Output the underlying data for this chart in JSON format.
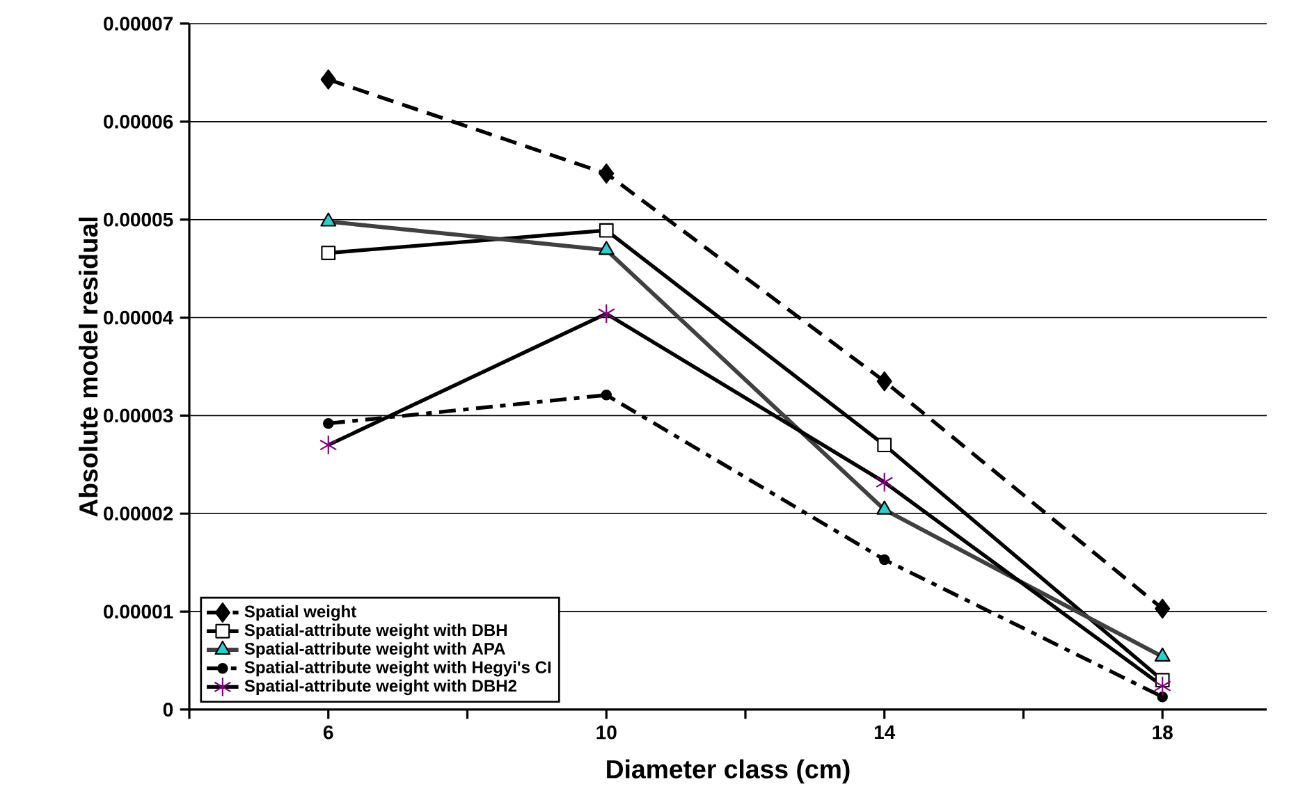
{
  "chart_data": {
    "type": "line",
    "xlabel": "Diameter class (cm)",
    "ylabel": "Absolute model residual",
    "x": [
      6,
      10,
      14,
      18
    ],
    "xlim": [
      4,
      19.5
    ],
    "xticks": [
      {
        "value": 4,
        "label": null
      },
      {
        "value": 6,
        "label": "6"
      },
      {
        "value": 8,
        "label": null
      },
      {
        "value": 10,
        "label": "10"
      },
      {
        "value": 12,
        "label": null
      },
      {
        "value": 14,
        "label": "14"
      },
      {
        "value": 16,
        "label": null
      },
      {
        "value": 18,
        "label": "18"
      }
    ],
    "ylim": [
      0,
      7e-05
    ],
    "yticks": [
      {
        "value": 0,
        "label": "0"
      },
      {
        "value": 1e-05,
        "label": "0.00001"
      },
      {
        "value": 2e-05,
        "label": "0.00002"
      },
      {
        "value": 3e-05,
        "label": "0.00003"
      },
      {
        "value": 4e-05,
        "label": "0.00004"
      },
      {
        "value": 5e-05,
        "label": "0.00005"
      },
      {
        "value": 6e-05,
        "label": "0.00006"
      },
      {
        "value": 7e-05,
        "label": "0.00007"
      }
    ],
    "grid": "y",
    "legend": "bottom left",
    "series": [
      {
        "name": "Spatial weight",
        "color": "#000000",
        "marker": "diamond",
        "line_style": "dashed",
        "values": [
          6.43e-05,
          5.47e-05,
          3.35e-05,
          1.03e-05
        ]
      },
      {
        "name": "Spatial-attribute weight with DBH",
        "color": "#000000",
        "marker": "square",
        "line_style": "solid",
        "values": [
          4.66e-05,
          4.89e-05,
          2.7e-05,
          3e-06
        ]
      },
      {
        "name": "Spatial-attribute weight with APA",
        "color": "#404040",
        "marker": "triangle",
        "line_style": "solid",
        "values": [
          4.98e-05,
          4.69e-05,
          2.04e-05,
          5.4e-06
        ]
      },
      {
        "name": "Spatial-attribute weight with Hegyi's CI",
        "color": "#000000",
        "marker": "circle",
        "line_style": "dashdot",
        "values": [
          2.92e-05,
          3.21e-05,
          1.53e-05,
          1.3e-06
        ]
      },
      {
        "name": "Spatial-attribute weight with DBH2",
        "color": "#000000",
        "marker": "cross",
        "line_style": "solid",
        "values": [
          2.7e-05,
          4.04e-05,
          2.32e-05,
          2.4e-06
        ]
      }
    ]
  }
}
